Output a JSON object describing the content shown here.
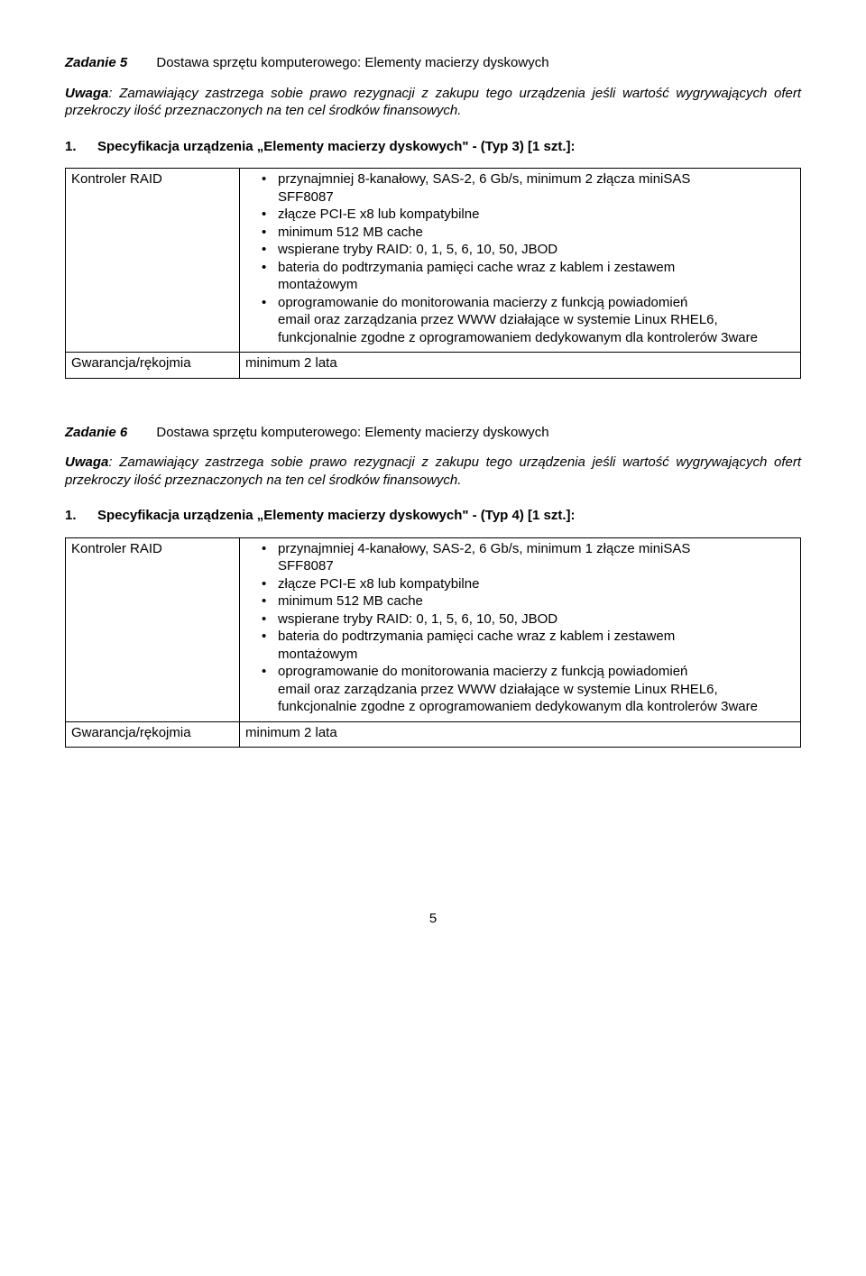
{
  "page_number": "5",
  "task5": {
    "label": "Zadanie 5",
    "title": "Dostawa sprzętu komputerowego: Elementy macierzy dyskowych",
    "note_label": "Uwaga",
    "note_text": ": Zamawiający zastrzega sobie prawo rezygnacji z zakupu tego urządzenia jeśli wartość wygrywających ofert przekroczy ilość przeznaczonych na ten cel środków finansowych.",
    "spec_num": "1.",
    "spec_title": "Specyfikacja urządzenia „Elementy macierzy dyskowych\" - (Typ 3) [1 szt.]:",
    "row1_label": "Kontroler RAID",
    "row1_items": [
      {
        "lead": "przynajmniej 8-kanałowy, SAS-2, 6 Gb/s, minimum 2 złącza miniSAS",
        "sub": "SFF8087"
      },
      {
        "lead": "złącze PCI-E x8 lub kompatybilne"
      },
      {
        "lead": "minimum 512 MB cache"
      },
      {
        "lead": "wspierane tryby RAID: 0, 1, 5, 6, 10, 50, JBOD"
      },
      {
        "lead": "bateria do podtrzymania pamięci cache wraz z kablem i zestawem",
        "sub": "montażowym"
      },
      {
        "lead": "oprogramowanie do monitorowania macierzy z funkcją powiadomień",
        "sub": "email oraz zarządzania przez WWW działające w systemie Linux RHEL6, funkcjonalnie zgodne z oprogramowaniem dedykowanym dla kontrolerów 3ware"
      }
    ],
    "row2_label": "Gwarancja/rękojmia",
    "row2_value": "minimum 2 lata"
  },
  "task6": {
    "label": "Zadanie 6",
    "title": "Dostawa sprzętu komputerowego: Elementy macierzy dyskowych",
    "note_label": "Uwaga",
    "note_text": ": Zamawiający zastrzega sobie prawo rezygnacji z zakupu tego urządzenia jeśli wartość wygrywających ofert przekroczy ilość przeznaczonych na ten cel środków finansowych.",
    "spec_num": "1.",
    "spec_title": "Specyfikacja urządzenia „Elementy macierzy dyskowych\" - (Typ 4) [1 szt.]:",
    "row1_label": "Kontroler RAID",
    "row1_items": [
      {
        "lead": "przynajmniej 4-kanałowy, SAS-2, 6 Gb/s, minimum 1 złącze miniSAS",
        "sub": "SFF8087"
      },
      {
        "lead": "złącze PCI-E x8 lub kompatybilne"
      },
      {
        "lead": "minimum 512 MB cache"
      },
      {
        "lead": "wspierane tryby RAID: 0, 1, 5, 6, 10, 50, JBOD"
      },
      {
        "lead": "bateria do podtrzymania pamięci cache wraz z kablem i zestawem",
        "sub": "montażowym"
      },
      {
        "lead": "oprogramowanie do monitorowania macierzy z funkcją powiadomień",
        "sub": "email oraz zarządzania przez WWW działające w systemie Linux RHEL6, funkcjonalnie zgodne z oprogramowaniem dedykowanym dla kontrolerów 3ware"
      }
    ],
    "row2_label": "Gwarancja/rękojmia",
    "row2_value": "minimum 2 lata"
  }
}
